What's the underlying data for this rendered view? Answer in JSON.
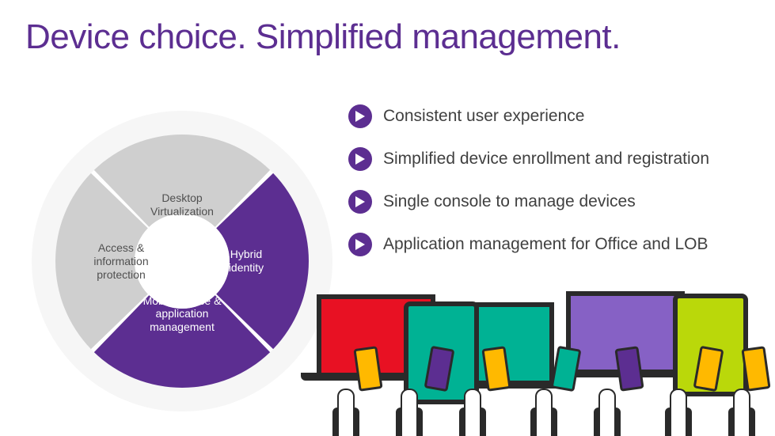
{
  "title": "Device choice.  Simplified management.",
  "title_color": "#5c2e91",
  "title_fontsize": 44,
  "background_color": "#ffffff",
  "donut": {
    "type": "donut",
    "outer_radius": 160,
    "inner_radius": 60,
    "halo_color": "#f6f6f6",
    "gap_deg": 2,
    "segments": [
      {
        "id": "top",
        "label": "Desktop Virtualization",
        "fill": "#cfcfcf",
        "text_color": "#505050",
        "start_deg": -45,
        "end_deg": 45
      },
      {
        "id": "right",
        "label": "Hybrid identity",
        "fill": "#5c2e91",
        "text_color": "#ffffff",
        "start_deg": 45,
        "end_deg": 135
      },
      {
        "id": "bottom",
        "label": "Mobile device & application management",
        "fill": "#5c2e91",
        "text_color": "#ffffff",
        "start_deg": 135,
        "end_deg": 225
      },
      {
        "id": "left",
        "label": "Access & information protection",
        "fill": "#cfcfcf",
        "text_color": "#505050",
        "start_deg": 225,
        "end_deg": 315
      }
    ]
  },
  "bullets": {
    "icon_bg": "#5c2e91",
    "icon_fg": "#ffffff",
    "text_color": "#404040",
    "fontsize": 21,
    "items": [
      {
        "text": "Consistent user experience"
      },
      {
        "text": "Simplified device enrollment and registration"
      },
      {
        "text": "Single console to manage devices"
      },
      {
        "text": "Application management for Office and LOB"
      }
    ]
  },
  "devices_illustration": {
    "laptop_colors": [
      "#e81123",
      "#00b294",
      "#8661c5",
      "#00bcf2"
    ],
    "tablet_colors": [
      "#00b294",
      "#bad80a"
    ],
    "phone_colors": [
      "#ffb900",
      "#5c2e91",
      "#ffb900",
      "#00b294",
      "#5c2e91",
      "#ffb900",
      "#ffb900"
    ],
    "outline_color": "#2a2a2a",
    "skin_color": "#ffffff"
  }
}
